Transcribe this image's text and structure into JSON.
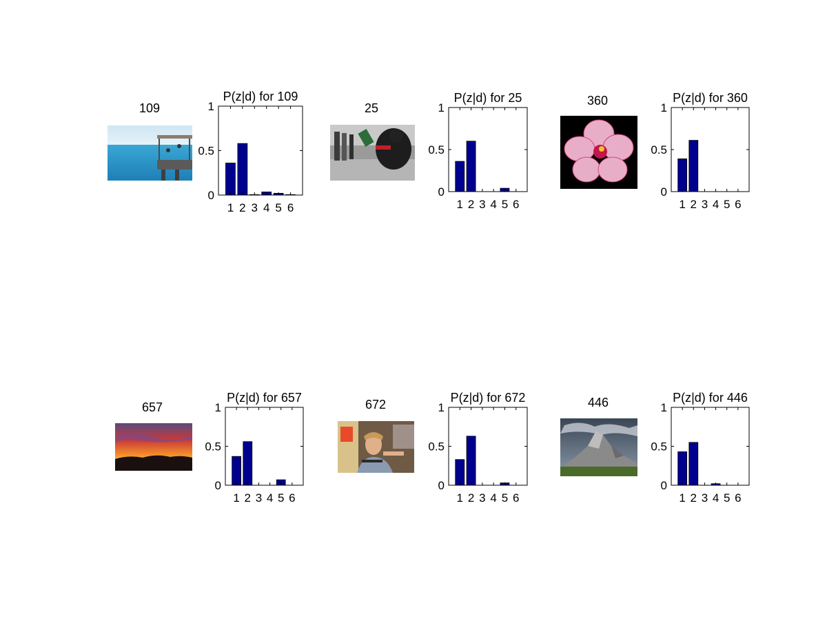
{
  "photos": [
    {
      "label": "109",
      "scene": "sea-pier-photo"
    },
    {
      "label": "25",
      "scene": "street-crowd-photo"
    },
    {
      "label": "360",
      "scene": "hibiscus-flower-photo"
    },
    {
      "label": "657",
      "scene": "sunset-sky-photo"
    },
    {
      "label": "672",
      "scene": "man-portrait-photo"
    },
    {
      "label": "446",
      "scene": "mountain-landscape-photo"
    }
  ],
  "bar_color": "#00008f",
  "chart_data": [
    {
      "type": "bar",
      "title": "P(z|d) for 109",
      "categories": [
        "1",
        "2",
        "3",
        "4",
        "5",
        "6"
      ],
      "values": [
        0.36,
        0.58,
        0.005,
        0.035,
        0.02,
        0.005
      ],
      "ylim": [
        0,
        1
      ],
      "yticks": [
        "0",
        "0.5",
        "1"
      ],
      "xlabel": "",
      "ylabel": ""
    },
    {
      "type": "bar",
      "title": "P(z|d) for 25",
      "categories": [
        "1",
        "2",
        "3",
        "4",
        "5",
        "6"
      ],
      "values": [
        0.36,
        0.6,
        0.0,
        0.0,
        0.04,
        0.0
      ],
      "ylim": [
        0,
        1
      ],
      "yticks": [
        "0",
        "0.5",
        "1"
      ],
      "xlabel": "",
      "ylabel": ""
    },
    {
      "type": "bar",
      "title": "P(z|d) for 360",
      "categories": [
        "1",
        "2",
        "3",
        "4",
        "5",
        "6"
      ],
      "values": [
        0.39,
        0.61,
        0.0,
        0.0,
        0.0,
        0.0
      ],
      "ylim": [
        0,
        1
      ],
      "yticks": [
        "0",
        "0.5",
        "1"
      ],
      "xlabel": "",
      "ylabel": ""
    },
    {
      "type": "bar",
      "title": "P(z|d) for 657",
      "categories": [
        "1",
        "2",
        "3",
        "4",
        "5",
        "6"
      ],
      "values": [
        0.37,
        0.56,
        0.0,
        0.0,
        0.07,
        0.0
      ],
      "ylim": [
        0,
        1
      ],
      "yticks": [
        "0",
        "0.5",
        "1"
      ],
      "xlabel": "",
      "ylabel": ""
    },
    {
      "type": "bar",
      "title": "P(z|d) for 672",
      "categories": [
        "1",
        "2",
        "3",
        "4",
        "5",
        "6"
      ],
      "values": [
        0.33,
        0.63,
        0.0,
        0.0,
        0.03,
        0.0
      ],
      "ylim": [
        0,
        1
      ],
      "yticks": [
        "0",
        "0.5",
        "1"
      ],
      "xlabel": "",
      "ylabel": ""
    },
    {
      "type": "bar",
      "title": "P(z|d) for 446",
      "categories": [
        "1",
        "2",
        "3",
        "4",
        "5",
        "6"
      ],
      "values": [
        0.43,
        0.55,
        0.0,
        0.02,
        0.0,
        0.0
      ],
      "ylim": [
        0,
        1
      ],
      "yticks": [
        "0",
        "0.5",
        "1"
      ],
      "xlabel": "",
      "ylabel": ""
    }
  ]
}
